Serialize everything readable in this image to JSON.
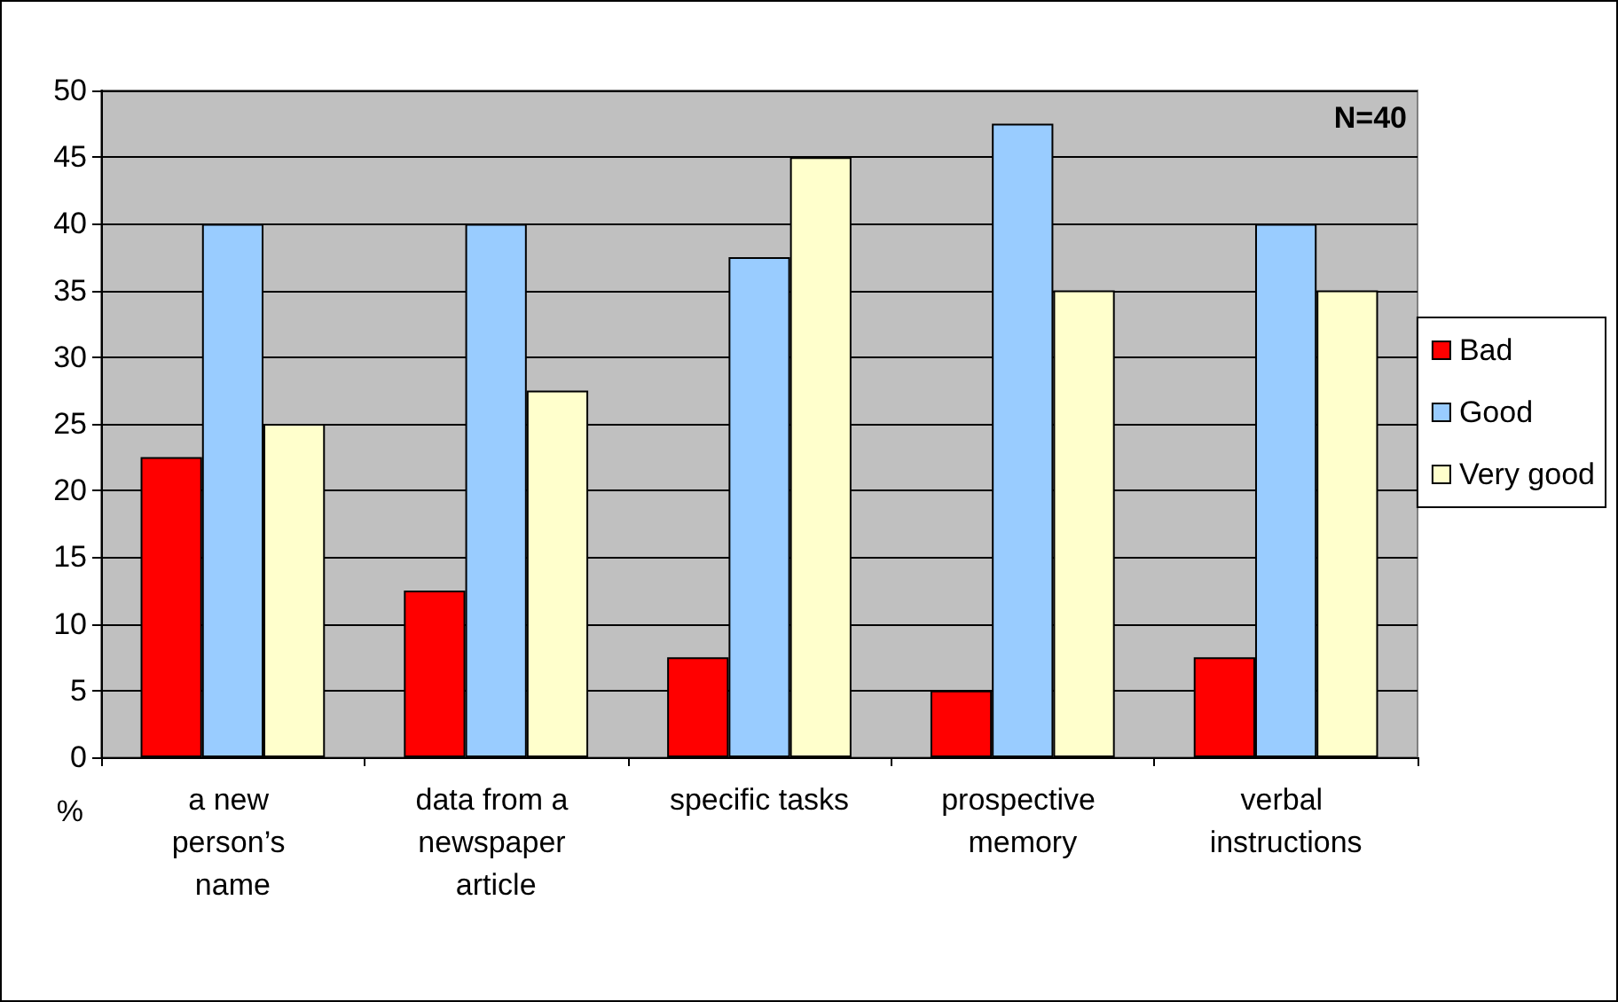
{
  "chart_data": {
    "type": "bar",
    "ylabel": "%",
    "annotations": [
      "N=40"
    ],
    "categories": [
      "a new person’s name",
      "data from a newspaper article",
      "specific tasks",
      "prospective memory",
      "verbal instructions"
    ],
    "series": [
      {
        "name": "Bad",
        "color": "#ff0000",
        "values": [
          22.5,
          12.5,
          7.5,
          5,
          7.5
        ]
      },
      {
        "name": "Good",
        "color": "#99ccff",
        "values": [
          40,
          40,
          37.5,
          47.5,
          40
        ]
      },
      {
        "name": "Very good",
        "color": "#ffffcc",
        "values": [
          25,
          27.5,
          45,
          35,
          35
        ]
      }
    ],
    "ylim": [
      0,
      50
    ],
    "yticks": [
      0,
      5,
      10,
      15,
      20,
      25,
      30,
      35,
      40,
      45,
      50
    ],
    "grid": "y",
    "legend": "right"
  }
}
